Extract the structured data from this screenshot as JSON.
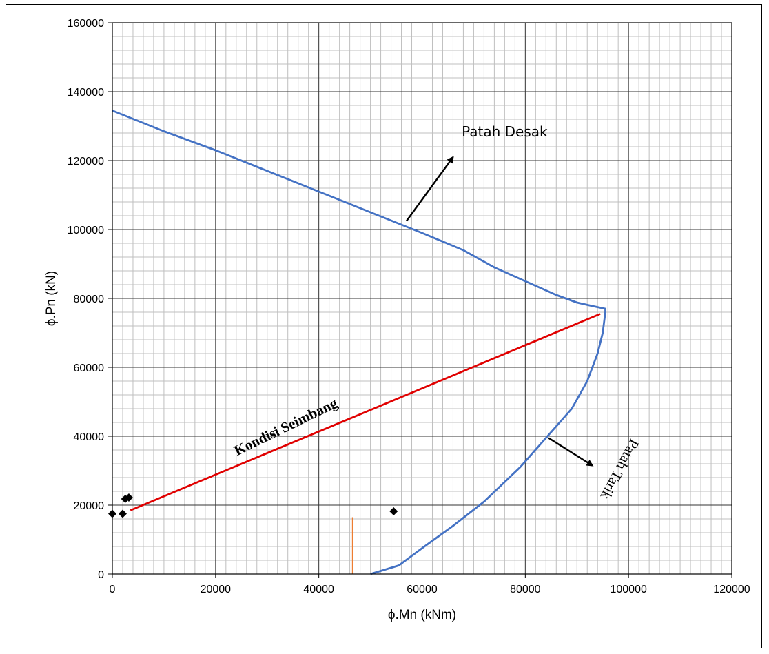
{
  "chart_data": {
    "type": "line",
    "title": "",
    "xlabel": "ϕ.Mn (kNm)",
    "ylabel": "ϕ.Pn (kN)",
    "xlim": [
      0,
      120000
    ],
    "ylim": [
      0,
      160000
    ],
    "x_ticks": [
      0,
      20000,
      40000,
      60000,
      80000,
      100000,
      120000
    ],
    "y_ticks": [
      0,
      20000,
      40000,
      60000,
      80000,
      100000,
      120000,
      140000,
      160000
    ],
    "x_major_step": 20000,
    "x_minor_step": 2000,
    "y_major_step": 20000,
    "y_minor_step": 4000,
    "grid": true,
    "series": [
      {
        "name": "",
        "kind": "line",
        "color": "#4472C4",
        "points": [
          [
            0,
            134500
          ],
          [
            10000,
            128500
          ],
          [
            20000,
            123000
          ],
          [
            30000,
            117000
          ],
          [
            40000,
            111000
          ],
          [
            50000,
            105000
          ],
          [
            60000,
            99000
          ],
          [
            68000,
            94000
          ],
          [
            74000,
            89000
          ],
          [
            80000,
            85000
          ],
          [
            86000,
            81000
          ],
          [
            90000,
            78800
          ],
          [
            93000,
            77800
          ],
          [
            95500,
            77000
          ],
          [
            95500,
            76000
          ],
          [
            95000,
            70000
          ],
          [
            94000,
            64000
          ],
          [
            92000,
            56000
          ],
          [
            89000,
            48000
          ],
          [
            84000,
            39500
          ],
          [
            79000,
            31000
          ],
          [
            72000,
            21000
          ],
          [
            66000,
            14000
          ],
          [
            60000,
            7500
          ],
          [
            55500,
            2500
          ],
          [
            50000,
            0
          ]
        ]
      },
      {
        "name": "",
        "kind": "line",
        "color": "#E00000",
        "points": [
          [
            3500,
            18500
          ],
          [
            94500,
            75500
          ]
        ]
      },
      {
        "name": "",
        "kind": "line",
        "color": "#ED7D31",
        "points": [
          [
            46500,
            0
          ],
          [
            46500,
            16500
          ]
        ]
      },
      {
        "name": "",
        "kind": "scatter",
        "color": "#000000",
        "points": [
          [
            0,
            17500
          ],
          [
            2000,
            17500
          ],
          [
            2500,
            21800
          ],
          [
            3200,
            22200
          ],
          [
            54500,
            18200
          ]
        ]
      }
    ],
    "annotations": [
      {
        "text": "Patah Desak",
        "x": 76000,
        "y": 127000,
        "arrow_from": [
          57000,
          102500
        ],
        "arrow_to": [
          66000,
          121000
        ]
      },
      {
        "text": "Kondisi Seimbang",
        "x": 34000,
        "y": 41500,
        "rotation_deg": -26
      },
      {
        "text": "Patah Tarik",
        "x": 97500,
        "y": 31000,
        "rotation_deg": 118,
        "arrow_from": [
          84500,
          39500
        ],
        "arrow_to": [
          93000,
          31500
        ]
      }
    ]
  }
}
